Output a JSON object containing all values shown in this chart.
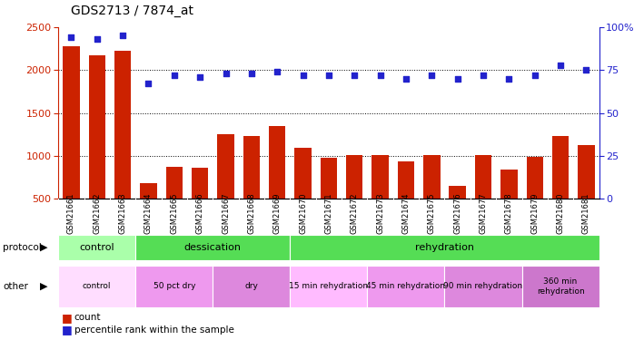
{
  "title": "GDS2713 / 7874_at",
  "samples": [
    "GSM21661",
    "GSM21662",
    "GSM21663",
    "GSM21664",
    "GSM21665",
    "GSM21666",
    "GSM21667",
    "GSM21668",
    "GSM21669",
    "GSM21670",
    "GSM21671",
    "GSM21672",
    "GSM21673",
    "GSM21674",
    "GSM21675",
    "GSM21676",
    "GSM21677",
    "GSM21678",
    "GSM21679",
    "GSM21680",
    "GSM21681"
  ],
  "counts": [
    2280,
    2175,
    2230,
    680,
    870,
    860,
    1250,
    1230,
    1350,
    1100,
    980,
    1010,
    1010,
    940,
    1010,
    650,
    1010,
    840,
    990,
    1230,
    1130
  ],
  "percentile": [
    94,
    93,
    95,
    67,
    72,
    71,
    73,
    73,
    74,
    72,
    72,
    72,
    72,
    70,
    72,
    70,
    72,
    70,
    72,
    78,
    75
  ],
  "bar_color": "#cc2200",
  "dot_color": "#2222cc",
  "ylim_left": [
    500,
    2500
  ],
  "ylim_right": [
    0,
    100
  ],
  "yticks_left": [
    500,
    1000,
    1500,
    2000,
    2500
  ],
  "yticks_right": [
    0,
    25,
    50,
    75,
    100
  ],
  "ytick_right_labels": [
    "0",
    "25",
    "50",
    "75",
    "100%"
  ],
  "bg_color": "#ffffff",
  "xtick_bg_color": "#d8d8d8",
  "protocol_segments": [
    {
      "text": "control",
      "start": 0,
      "end": 3,
      "color": "#aaffaa"
    },
    {
      "text": "dessication",
      "start": 3,
      "end": 9,
      "color": "#55dd55"
    },
    {
      "text": "rehydration",
      "start": 9,
      "end": 21,
      "color": "#55dd55"
    }
  ],
  "other_segments": [
    {
      "text": "control",
      "start": 0,
      "end": 3,
      "color": "#ffddff"
    },
    {
      "text": "50 pct dry",
      "start": 3,
      "end": 6,
      "color": "#ee99ee"
    },
    {
      "text": "dry",
      "start": 6,
      "end": 9,
      "color": "#dd88dd"
    },
    {
      "text": "15 min rehydration",
      "start": 9,
      "end": 12,
      "color": "#ffbbff"
    },
    {
      "text": "45 min rehydration",
      "start": 12,
      "end": 15,
      "color": "#ee99ee"
    },
    {
      "text": "90 min rehydration",
      "start": 15,
      "end": 18,
      "color": "#dd88dd"
    },
    {
      "text": "360 min\nrehydration",
      "start": 18,
      "end": 21,
      "color": "#cc77cc"
    }
  ]
}
